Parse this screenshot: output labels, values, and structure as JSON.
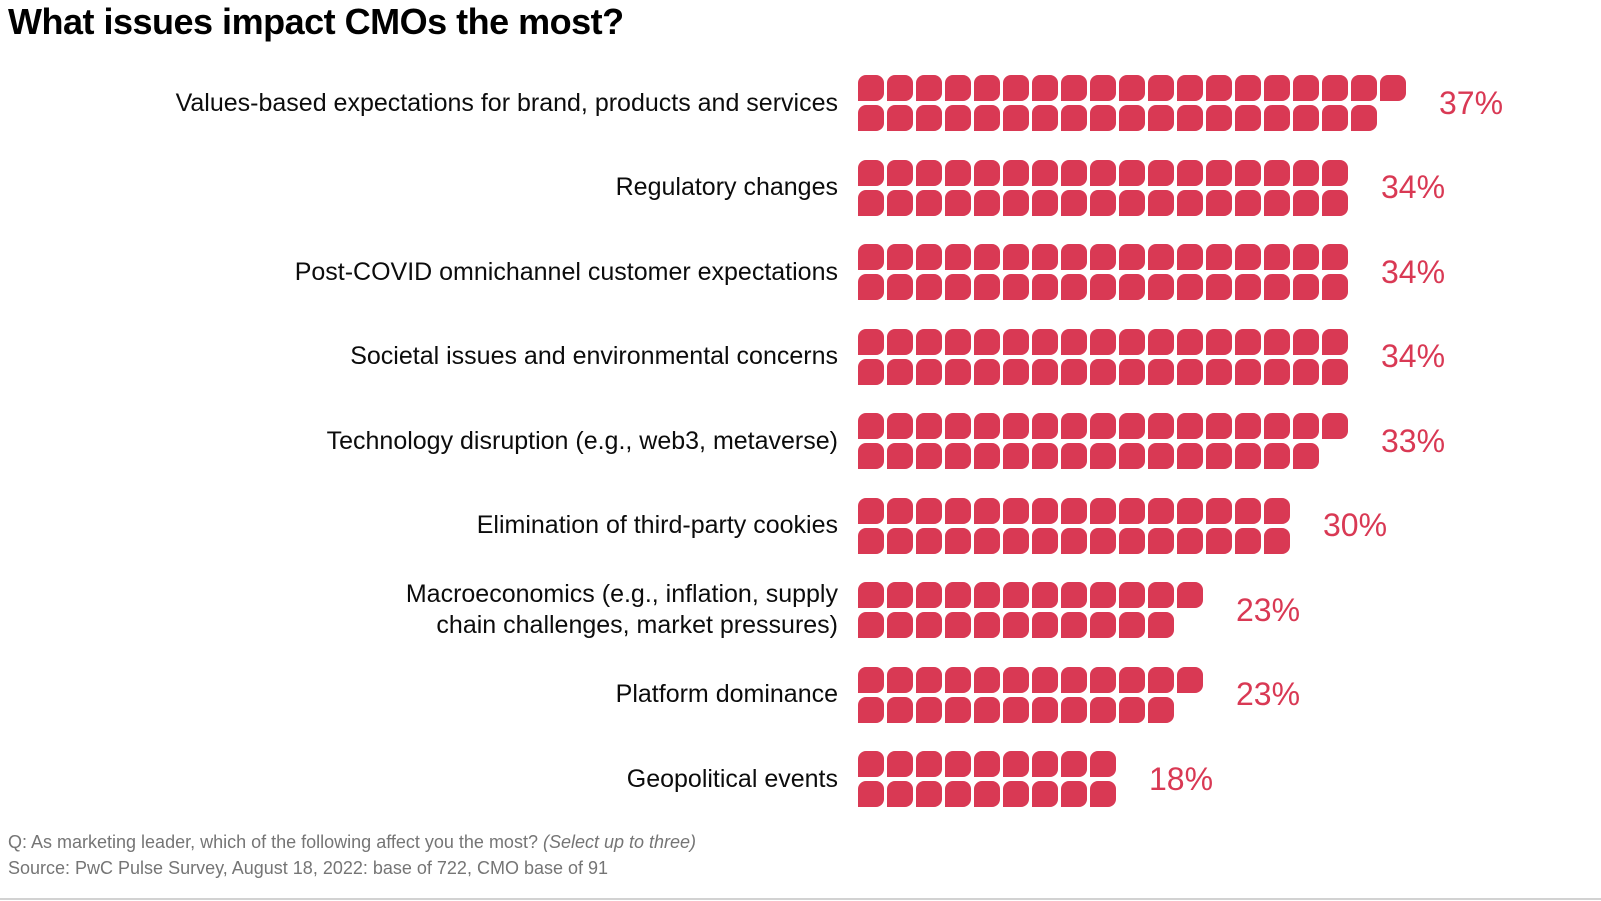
{
  "page": {
    "title": "What issues impact CMOs the most?",
    "footnote_q": "Q: As marketing leader, which of the following affect you the most?",
    "footnote_q_note": "(Select up to three)",
    "footnote_source": "Source: PwC Pulse Survey, August 18, 2022: base of 722, CMO base of 91"
  },
  "colors": {
    "accent": "#d93954",
    "label_text": "#0c0c0c",
    "footnote_text": "#757575"
  },
  "chart_data": {
    "type": "bar",
    "subtype": "pictogram-unit-chart",
    "title": "What issues impact CMOs the most?",
    "unit_value_percent": 1,
    "unit_rows_per_category": 2,
    "value_suffix": "%",
    "xlabel": "",
    "ylabel": "",
    "legend": "none",
    "axes_visible": false,
    "categories": [
      "Values-based expectations for brand, products and services",
      "Regulatory changes",
      "Post-COVID omnichannel customer expectations",
      "Societal issues and environmental concerns",
      "Technology disruption (e.g., web3, metaverse)",
      "Elimination of third-party cookies",
      "Macroeconomics (e.g., inflation, supply\nchain challenges, market pressures)",
      "Platform dominance",
      "Geopolitical events"
    ],
    "values": [
      37,
      34,
      34,
      34,
      33,
      30,
      23,
      23,
      18
    ],
    "value_labels": [
      "37%",
      "34%",
      "34%",
      "34%",
      "33%",
      "30%",
      "23%",
      "23%",
      "18%"
    ]
  }
}
